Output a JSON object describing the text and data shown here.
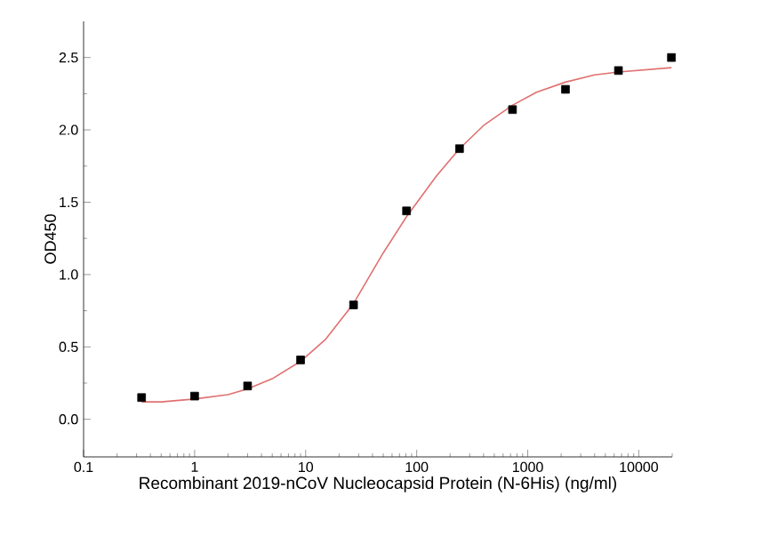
{
  "chart_data": {
    "type": "scatter",
    "xlabel": "Recombinant 2019-nCoV Nucleocapsid Protein (N-6His) (ng/ml)",
    "ylabel": "OD450",
    "log": "x",
    "grid": false,
    "xlim": [
      0.1,
      20000
    ],
    "ylim": [
      -0.26,
      2.75
    ],
    "xticks": [
      0.1,
      1,
      10,
      100,
      1000,
      10000
    ],
    "yticks": [
      {
        "value": 0,
        "label": "0.0"
      },
      0.5,
      {
        "value": 1,
        "label": "1.0"
      },
      1.5,
      {
        "value": 2,
        "label": "2.0"
      },
      2.5
    ],
    "series": [
      {
        "marker": "square",
        "color": "#000000",
        "x": [
          0.333,
          1,
          3,
          9,
          27,
          81,
          243,
          729,
          2187,
          6561,
          19683
        ],
        "values": [
          0.15,
          0.16,
          0.23,
          0.41,
          0.79,
          1.44,
          1.87,
          2.14,
          2.28,
          2.41,
          2.5
        ]
      },
      {
        "type": "line",
        "marker": "none",
        "line_style": "solid",
        "color": "#e07070",
        "x": [
          0.333,
          0.5,
          1,
          2,
          3,
          5,
          9,
          15,
          27,
          50,
          81,
          150,
          243,
          400,
          729,
          1200,
          2187,
          4000,
          6561,
          19683
        ],
        "values": [
          0.12,
          0.12,
          0.14,
          0.17,
          0.21,
          0.28,
          0.4,
          0.55,
          0.8,
          1.15,
          1.4,
          1.68,
          1.87,
          2.03,
          2.17,
          2.26,
          2.33,
          2.38,
          2.4,
          2.43
        ]
      }
    ]
  }
}
